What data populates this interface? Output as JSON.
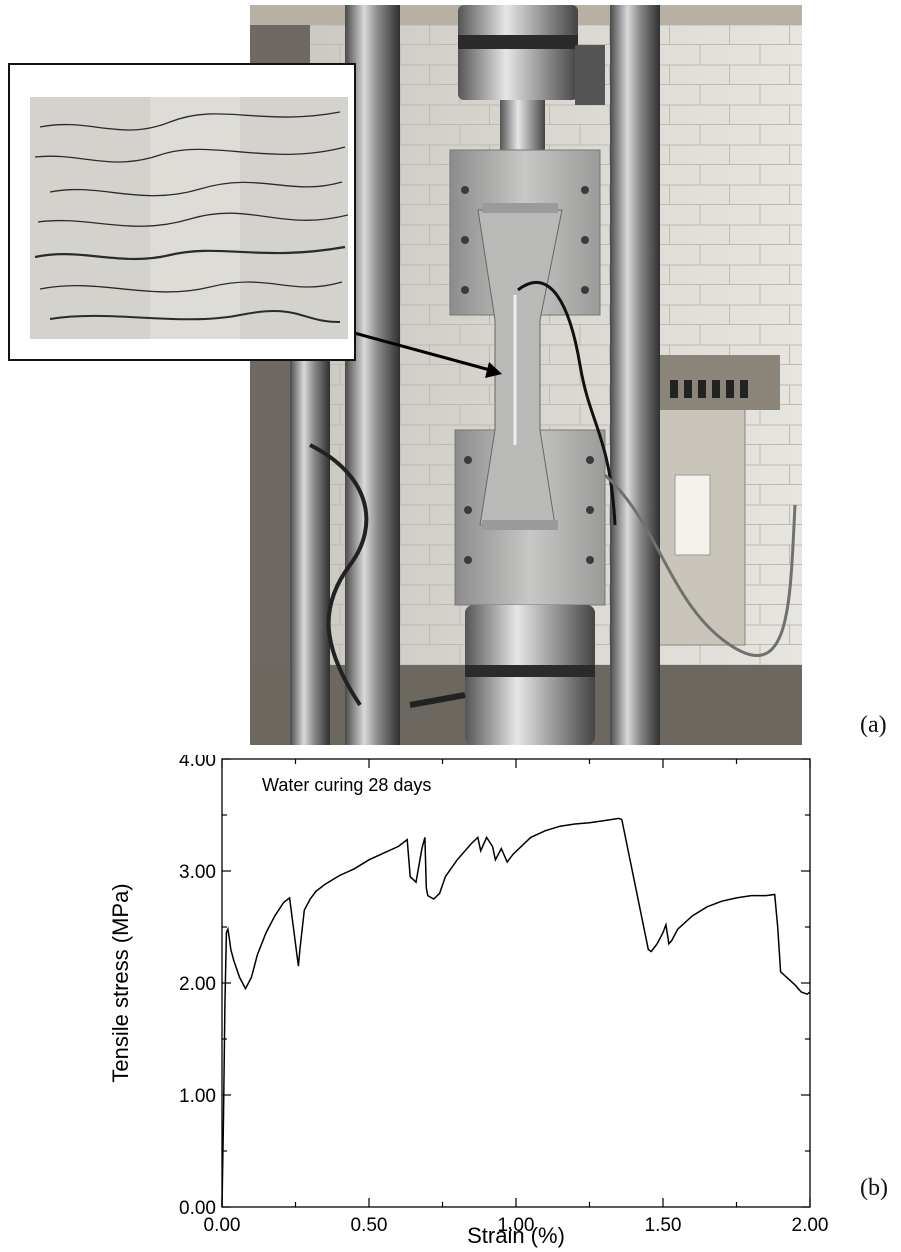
{
  "panel_labels": {
    "a": "(a)",
    "b": "(b)"
  },
  "photo": {
    "subject": "tensile-test-machine-with-dogbone-specimen",
    "inset_subject": "close-up-multiple-microcracks"
  },
  "colors": {
    "line": "#000000",
    "background": "#ffffff",
    "inset_border": "#111111"
  },
  "chart_data": {
    "type": "line",
    "title": "",
    "xlabel": "Strain (%)",
    "ylabel": "Tensile stress (MPa)",
    "xlim": [
      0,
      2.0
    ],
    "ylim": [
      0,
      4.0
    ],
    "x_major_ticks": [
      0.0,
      0.5,
      1.0,
      1.5,
      2.0
    ],
    "x_tick_labels": [
      "0.00",
      "0.50",
      "1.00",
      "1.50",
      "2.00"
    ],
    "y_major_ticks": [
      0.0,
      1.0,
      2.0,
      3.0,
      4.0
    ],
    "y_tick_labels": [
      "0.00",
      "1.00",
      "2.00",
      "3.00",
      "4.00"
    ],
    "minor_ticks": true,
    "grid": false,
    "annotation": "Water curing 28 days",
    "series": [
      {
        "x": [
          0.0,
          0.005,
          0.01,
          0.015,
          0.02,
          0.025,
          0.03,
          0.04,
          0.06,
          0.08,
          0.1,
          0.12,
          0.15,
          0.18,
          0.21,
          0.23,
          0.24,
          0.26,
          0.265,
          0.28,
          0.3,
          0.32,
          0.35,
          0.4,
          0.45,
          0.5,
          0.55,
          0.6,
          0.62,
          0.63,
          0.64,
          0.66,
          0.68,
          0.69,
          0.695,
          0.7,
          0.72,
          0.74,
          0.76,
          0.8,
          0.85,
          0.87,
          0.88,
          0.9,
          0.92,
          0.93,
          0.95,
          0.97,
          0.99,
          1.05,
          1.1,
          1.15,
          1.2,
          1.25,
          1.3,
          1.35,
          1.36,
          1.45,
          1.46,
          1.48,
          1.5,
          1.51,
          1.52,
          1.53,
          1.55,
          1.6,
          1.65,
          1.7,
          1.75,
          1.8,
          1.85,
          1.88,
          1.89,
          1.9,
          1.95,
          1.97,
          1.99,
          2.0
        ],
        "y": [
          0.0,
          0.8,
          1.8,
          2.45,
          2.48,
          2.4,
          2.3,
          2.2,
          2.05,
          1.95,
          2.05,
          2.25,
          2.45,
          2.6,
          2.72,
          2.76,
          2.55,
          2.15,
          2.3,
          2.65,
          2.75,
          2.82,
          2.88,
          2.96,
          3.02,
          3.1,
          3.16,
          3.22,
          3.26,
          3.28,
          2.95,
          2.9,
          3.2,
          3.3,
          2.85,
          2.78,
          2.75,
          2.8,
          2.95,
          3.1,
          3.25,
          3.3,
          3.18,
          3.3,
          3.22,
          3.1,
          3.2,
          3.08,
          3.15,
          3.3,
          3.36,
          3.4,
          3.42,
          3.43,
          3.45,
          3.47,
          3.46,
          2.3,
          2.28,
          2.35,
          2.45,
          2.52,
          2.35,
          2.38,
          2.48,
          2.6,
          2.68,
          2.73,
          2.76,
          2.78,
          2.78,
          2.79,
          2.5,
          2.1,
          1.98,
          1.92,
          1.9,
          1.92
        ]
      }
    ]
  }
}
